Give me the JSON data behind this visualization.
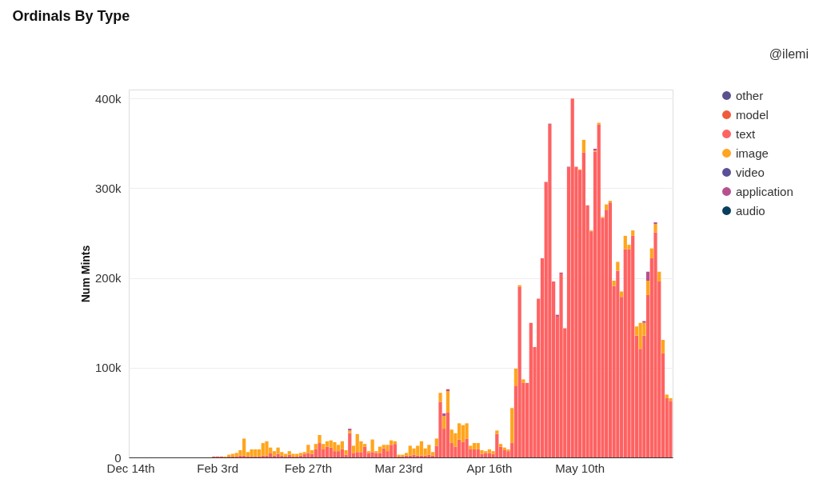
{
  "chart_data": {
    "type": "bar",
    "stacked": true,
    "title": "Ordinals By Type",
    "ylabel": "Num Mints",
    "annotations": [
      "@ilemi"
    ],
    "legend": "right",
    "grid": "y",
    "ylim": [
      0,
      410
    ],
    "yticks": [
      0,
      {
        "value": 100,
        "label": "100k"
      },
      {
        "value": 200,
        "label": "200k"
      },
      {
        "value": 300,
        "label": "300k"
      },
      {
        "value": 400,
        "label": "400k"
      }
    ],
    "categories": [
      "Dec 14th",
      null,
      null,
      null,
      null,
      null,
      null,
      null,
      null,
      null,
      null,
      null,
      null,
      null,
      null,
      null,
      null,
      null,
      null,
      null,
      null,
      null,
      null,
      "Feb 3rd",
      null,
      null,
      null,
      null,
      null,
      null,
      null,
      null,
      null,
      null,
      null,
      null,
      null,
      null,
      null,
      null,
      null,
      null,
      null,
      null,
      null,
      null,
      null,
      "Feb 27th",
      null,
      null,
      null,
      null,
      null,
      null,
      null,
      null,
      null,
      null,
      null,
      null,
      null,
      null,
      null,
      null,
      null,
      null,
      null,
      null,
      null,
      null,
      null,
      "Mar 23rd",
      null,
      null,
      null,
      null,
      null,
      null,
      null,
      null,
      null,
      null,
      null,
      null,
      null,
      null,
      null,
      null,
      null,
      null,
      null,
      null,
      null,
      null,
      null,
      "Apr 16th",
      null,
      null,
      null,
      null,
      null,
      null,
      null,
      null,
      null,
      null,
      null,
      null,
      null,
      null,
      null,
      null,
      null,
      null,
      null,
      null,
      null,
      null,
      null,
      "May 10th",
      null,
      null,
      null,
      null,
      null,
      null,
      null,
      null,
      null,
      null,
      null,
      null,
      null,
      null,
      null,
      null,
      null,
      null,
      null,
      null,
      null,
      null,
      null,
      null
    ],
    "series": [
      {
        "name": "other",
        "color": "#5a518f",
        "values": [
          null,
          null,
          null,
          null,
          null,
          null,
          null,
          null,
          null,
          null,
          null,
          null,
          null,
          null,
          null,
          null,
          null,
          null,
          null,
          null,
          null,
          null,
          null,
          null,
          null,
          null,
          null,
          null,
          null,
          null,
          null,
          null,
          null,
          null,
          null,
          null,
          null,
          null,
          null,
          null,
          null,
          null,
          null,
          null,
          null,
          null,
          null,
          null,
          null,
          null,
          null,
          null,
          null,
          null,
          null,
          null,
          null,
          null,
          null,
          null,
          null,
          null,
          null,
          null,
          null,
          null,
          null,
          null,
          null,
          null,
          null,
          null,
          null,
          null,
          null,
          null,
          null,
          null,
          null,
          null,
          null,
          null,
          null,
          null,
          null,
          null,
          null,
          null,
          null,
          null,
          null,
          null,
          null,
          null,
          null,
          null,
          null,
          null,
          null,
          null,
          null,
          null,
          null,
          null,
          null,
          null,
          null,
          null,
          null,
          null,
          null,
          null,
          null,
          null,
          null,
          null,
          null,
          null,
          null,
          null,
          null,
          null,
          null,
          null,
          null,
          null,
          null,
          null,
          null,
          null,
          null,
          null,
          null,
          null,
          null,
          null,
          null,
          null,
          null,
          null,
          null,
          null,
          null,
          null
        ]
      },
      {
        "name": "model",
        "color": "#f05a3c",
        "values": [
          null,
          null,
          null,
          null,
          null,
          null,
          null,
          null,
          null,
          null,
          null,
          null,
          null,
          null,
          null,
          null,
          null,
          null,
          null,
          null,
          null,
          null,
          null,
          null,
          null,
          null,
          null,
          null,
          null,
          null,
          null,
          null,
          null,
          null,
          null,
          null,
          null,
          null,
          null,
          null,
          null,
          null,
          null,
          null,
          null,
          null,
          null,
          null,
          null,
          null,
          null,
          null,
          null,
          null,
          null,
          null,
          null,
          null,
          null,
          null,
          null,
          null,
          null,
          null,
          null,
          null,
          null,
          null,
          null,
          null,
          null,
          null,
          null,
          null,
          null,
          null,
          null,
          null,
          null,
          null,
          null,
          null,
          null,
          null,
          null,
          null,
          null,
          null,
          null,
          null,
          null,
          null,
          null,
          null,
          null,
          null,
          null,
          null,
          null,
          null,
          null,
          null,
          null,
          null,
          null,
          null,
          null,
          null,
          null,
          null,
          null,
          null,
          null,
          null,
          null,
          null,
          null,
          null,
          null,
          null,
          null,
          null,
          null,
          null,
          null,
          null,
          null,
          null,
          null,
          null,
          null,
          null,
          null,
          null,
          null,
          null,
          null,
          null,
          null,
          null,
          null,
          null,
          null,
          null
        ]
      },
      {
        "name": "text",
        "color": "#fe6262",
        "values": [
          null,
          null,
          null,
          null,
          null,
          null,
          null,
          null,
          null,
          null,
          null,
          null,
          null,
          null,
          null,
          null,
          null,
          null,
          null,
          null,
          null,
          null,
          1,
          1,
          1,
          null,
          1,
          1,
          1,
          2,
          2,
          1,
          1,
          1,
          1,
          2,
          2,
          5,
          2,
          4,
          2,
          1,
          3,
          1,
          1,
          2,
          4,
          5,
          4,
          9,
          16,
          9,
          12,
          11,
          7,
          7,
          9,
          3,
          27,
          5,
          6,
          6,
          12,
          5,
          6,
          5,
          5,
          10,
          7,
          14,
          15,
          1,
          1,
          2,
          2,
          3,
          2,
          2,
          2,
          3,
          2,
          13,
          62,
          32,
          50,
          16,
          12,
          20,
          17,
          21,
          9,
          9,
          9,
          4,
          5,
          5,
          4,
          26,
          12,
          8,
          7,
          16,
          80,
          190,
          83,
          83,
          150,
          123,
          177,
          222,
          307,
          371,
          196,
          157,
          205,
          144,
          323,
          400,
          324,
          320,
          340,
          281,
          252,
          341,
          371,
          267,
          276,
          284,
          191,
          208,
          179,
          232,
          232,
          247,
          136,
          121,
          136,
          181,
          222,
          251,
          196,
          116,
          66,
          63
        ]
      },
      {
        "name": "image",
        "color": "#ffa51d",
        "values": [
          null,
          null,
          null,
          null,
          null,
          null,
          null,
          null,
          null,
          null,
          null,
          null,
          null,
          null,
          null,
          null,
          null,
          null,
          null,
          null,
          null,
          null,
          null,
          null,
          null,
          1,
          2,
          3,
          4,
          6,
          19,
          5,
          8,
          8,
          8,
          14,
          16,
          6,
          5,
          7,
          4,
          3,
          4,
          3,
          3,
          3,
          2,
          9,
          4,
          6,
          9,
          6,
          6,
          8,
          10,
          7,
          9,
          5,
          3,
          8,
          20,
          12,
          3,
          2,
          14,
          2,
          7,
          4,
          7,
          5,
          3,
          2,
          2,
          3,
          11,
          7,
          11,
          16,
          8,
          11,
          4,
          8,
          10,
          14,
          24,
          15,
          15,
          18,
          19,
          17,
          4,
          7,
          7,
          4,
          2,
          4,
          3,
          4,
          3,
          3,
          2,
          39,
          19,
          2,
          4,
          null,
          null,
          null,
          null,
          null,
          null,
          null,
          null,
          null,
          null,
          null,
          null,
          null,
          null,
          1,
          14,
          null,
          1,
          1,
          2,
          1,
          6,
          2,
          6,
          10,
          6,
          15,
          5,
          6,
          10,
          29,
          14,
          16,
          11,
          9,
          11,
          15,
          4,
          3
        ]
      },
      {
        "name": "video",
        "color": "#5b4f95",
        "values": [
          null,
          null,
          null,
          null,
          null,
          null,
          null,
          null,
          null,
          null,
          null,
          null,
          null,
          null,
          null,
          null,
          null,
          null,
          null,
          null,
          null,
          null,
          null,
          null,
          null,
          null,
          null,
          null,
          null,
          null,
          null,
          null,
          null,
          null,
          null,
          null,
          null,
          null,
          null,
          null,
          null,
          null,
          null,
          null,
          null,
          null,
          null,
          null,
          null,
          null,
          null,
          null,
          null,
          null,
          null,
          null,
          null,
          null,
          null,
          null,
          null,
          null,
          null,
          null,
          null,
          null,
          null,
          null,
          null,
          null,
          null,
          null,
          null,
          null,
          null,
          null,
          null,
          null,
          null,
          null,
          null,
          null,
          null,
          null,
          null,
          null,
          null,
          null,
          null,
          null,
          null,
          null,
          null,
          null,
          null,
          null,
          null,
          null,
          null,
          null,
          null,
          null,
          null,
          null,
          null,
          null,
          null,
          null,
          null,
          null,
          null,
          null,
          null,
          null,
          null,
          null,
          null,
          null,
          null,
          null,
          null,
          null,
          null,
          null,
          null,
          null,
          null,
          null,
          null,
          null,
          null,
          null,
          null,
          null,
          null,
          null,
          null,
          null,
          null,
          null,
          null,
          null,
          null,
          null
        ]
      },
      {
        "name": "application",
        "color": "#b6508f",
        "values": [
          null,
          null,
          null,
          null,
          null,
          null,
          null,
          null,
          null,
          null,
          null,
          null,
          null,
          null,
          null,
          null,
          null,
          null,
          null,
          null,
          null,
          null,
          null,
          null,
          null,
          null,
          null,
          null,
          null,
          null,
          null,
          null,
          null,
          null,
          null,
          null,
          null,
          null,
          null,
          null,
          null,
          null,
          null,
          null,
          null,
          null,
          null,
          null,
          null,
          null,
          null,
          null,
          null,
          null,
          null,
          null,
          null,
          null,
          2,
          null,
          null,
          null,
          null,
          null,
          null,
          null,
          null,
          null,
          null,
          null,
          null,
          null,
          null,
          null,
          null,
          null,
          null,
          null,
          null,
          null,
          null,
          null,
          null,
          3,
          2,
          null,
          null,
          null,
          null,
          null,
          null,
          null,
          null,
          null,
          null,
          null,
          null,
          null,
          null,
          null,
          null,
          null,
          null,
          null,
          null,
          null,
          null,
          null,
          null,
          null,
          null,
          1,
          null,
          2,
          1,
          null,
          1,
          null,
          null,
          null,
          null,
          null,
          null,
          2,
          null,
          null,
          null,
          null,
          null,
          null,
          null,
          null,
          null,
          null,
          null,
          null,
          2,
          10,
          null,
          2,
          null,
          null,
          null,
          null
        ]
      },
      {
        "name": "audio",
        "color": "#073f5c",
        "values": [
          null,
          null,
          null,
          null,
          null,
          null,
          null,
          null,
          null,
          null,
          null,
          null,
          null,
          null,
          null,
          null,
          null,
          null,
          null,
          null,
          null,
          null,
          null,
          null,
          null,
          null,
          null,
          null,
          null,
          null,
          null,
          null,
          null,
          null,
          null,
          null,
          null,
          null,
          null,
          null,
          null,
          null,
          null,
          null,
          null,
          null,
          null,
          null,
          null,
          null,
          null,
          null,
          null,
          null,
          null,
          null,
          null,
          null,
          null,
          null,
          null,
          null,
          null,
          null,
          null,
          null,
          null,
          null,
          null,
          null,
          null,
          null,
          null,
          null,
          null,
          null,
          null,
          null,
          null,
          null,
          null,
          null,
          null,
          null,
          null,
          null,
          null,
          null,
          null,
          null,
          null,
          null,
          null,
          null,
          null,
          null,
          null,
          null,
          null,
          null,
          null,
          null,
          null,
          null,
          null,
          null,
          null,
          null,
          null,
          null,
          null,
          null,
          null,
          null,
          null,
          null,
          null,
          null,
          null,
          null,
          null,
          null,
          null,
          null,
          null,
          null,
          null,
          null,
          null,
          null,
          null,
          null,
          null,
          null,
          null,
          null,
          null,
          null,
          null,
          null,
          null,
          null,
          null,
          null
        ]
      }
    ]
  }
}
